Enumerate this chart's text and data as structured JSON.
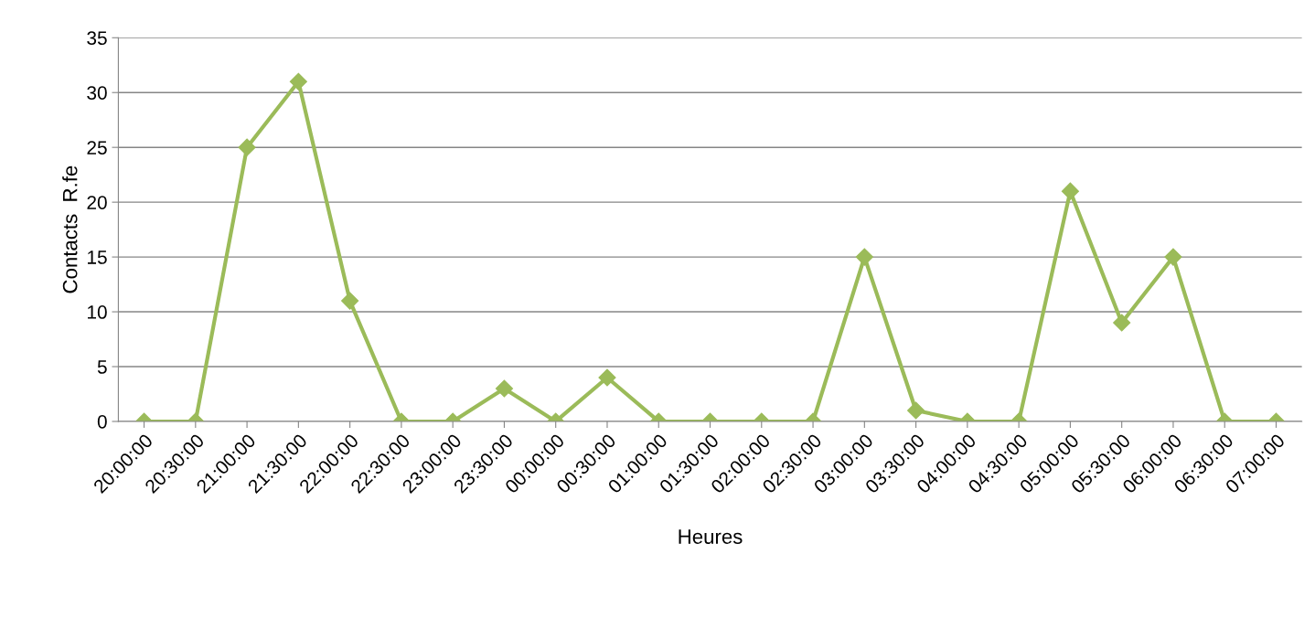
{
  "chart_data": {
    "type": "line",
    "xlabel": "Heures",
    "ylabel": "Contacts  R.fe",
    "categories": [
      "20:00:00",
      "20:30:00",
      "21:00:00",
      "21:30:00",
      "22:00:00",
      "22:30:00",
      "23:00:00",
      "23:30:00",
      "00:00:00",
      "00:30:00",
      "01:00:00",
      "01:30:00",
      "02:00:00",
      "02:30:00",
      "03:00:00",
      "03:30:00",
      "04:00:00",
      "04:30:00",
      "05:00:00",
      "05:30:00",
      "06:00:00",
      "06:30:00",
      "07:00:00"
    ],
    "series": [
      {
        "color": "#9bbb59",
        "values": [
          0,
          0,
          25,
          31,
          11,
          0,
          0,
          3,
          0,
          4,
          0,
          0,
          0,
          0,
          15,
          1,
          0,
          0,
          21,
          9,
          15,
          0,
          0
        ]
      }
    ],
    "ylim": [
      0,
      35
    ],
    "yticks": [
      0,
      5,
      10,
      15,
      20,
      25,
      30,
      35
    ],
    "grid": "y",
    "legend": false,
    "marker": "diamond",
    "line_style": "solid"
  }
}
